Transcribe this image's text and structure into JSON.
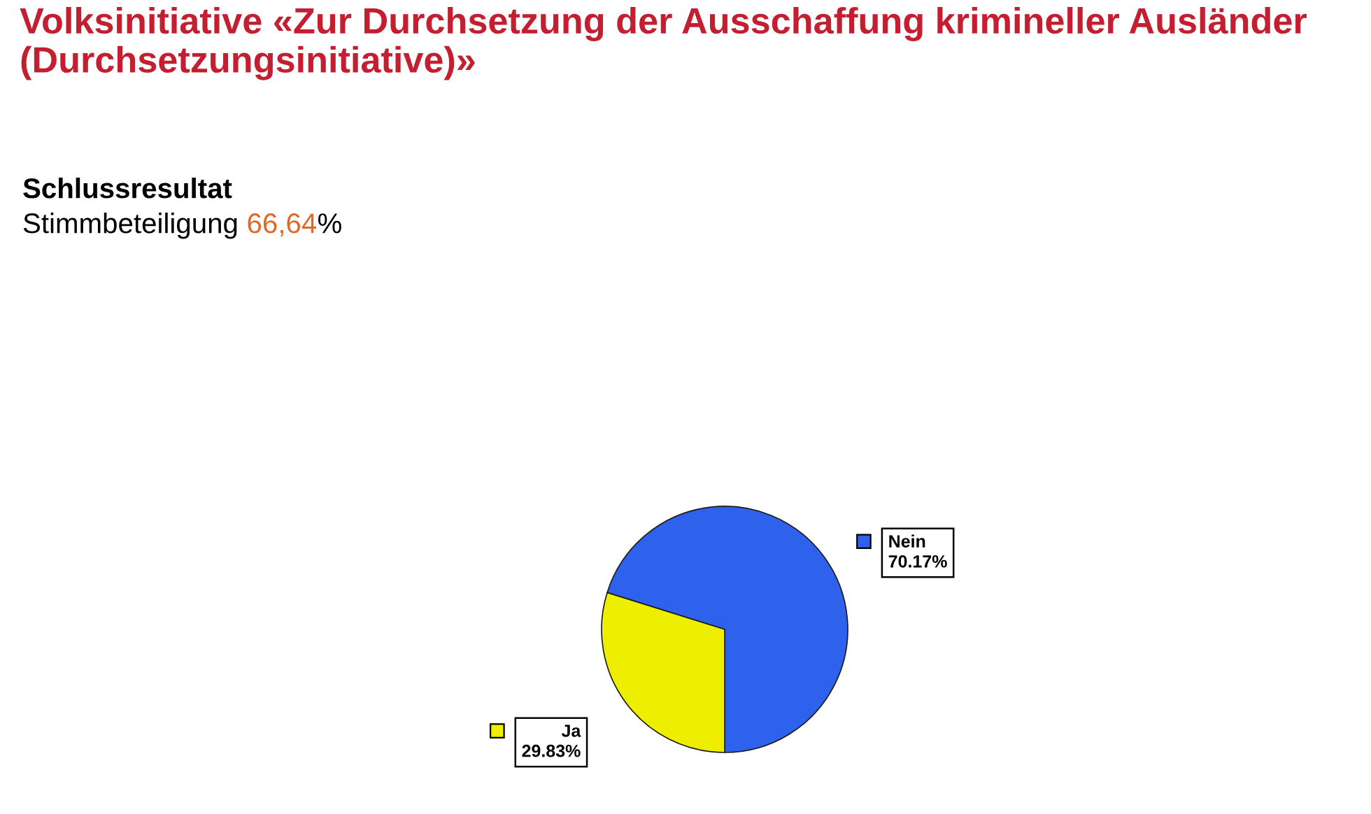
{
  "chart_data": {
    "type": "pie",
    "title": "Volksinitiative «Zur Durchsetzung der Ausschaffung krimineller Ausländer (Durchsetzungsinitiative)»",
    "subtitle": "Schlussresultat",
    "annotations": [
      "Stimmbeteiligung 66,64%"
    ],
    "categories": [
      "Nein",
      "Ja"
    ],
    "values": [
      70.17,
      29.83
    ],
    "colors": [
      "#2f62ec",
      "#eeee00"
    ],
    "value_labels": [
      "70.17%",
      "29.83%"
    ]
  }
}
